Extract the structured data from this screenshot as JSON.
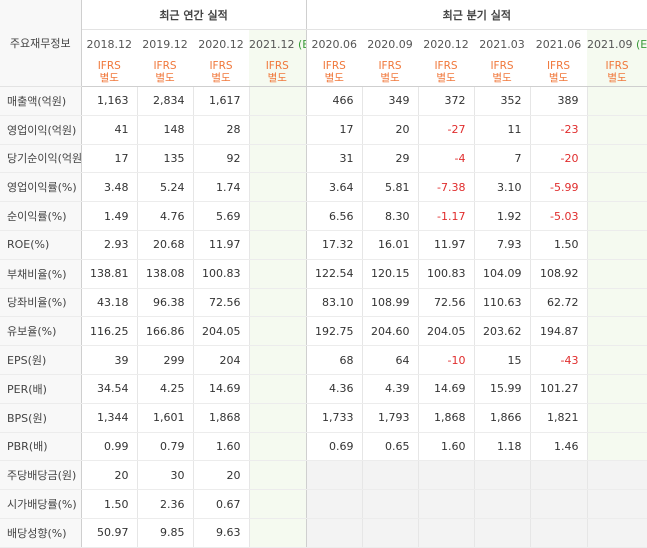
{
  "header": {
    "label": "주요재무정보",
    "annual_title": "최근 연간 실적",
    "quarter_title": "최근 분기 실적"
  },
  "periods": {
    "annual": [
      "2018.12",
      "2019.12",
      "2020.12",
      "2021.12"
    ],
    "annual_estimate_mark": "(E)",
    "quarter": [
      "2020.06",
      "2020.09",
      "2020.12",
      "2021.03",
      "2021.06",
      "2021.09"
    ],
    "quarter_estimate_mark": "(E)"
  },
  "ifrs": {
    "line1": "IFRS",
    "line2": "별도"
  },
  "rows": [
    {
      "label": "매출액(억원)",
      "annual": [
        "1,163",
        "2,834",
        "1,617",
        ""
      ],
      "quarter": [
        "466",
        "349",
        "372",
        "352",
        "389",
        ""
      ]
    },
    {
      "label": "영업이익(억원)",
      "annual": [
        "41",
        "148",
        "28",
        ""
      ],
      "quarter": [
        "17",
        "20",
        "-27",
        "11",
        "-23",
        ""
      ]
    },
    {
      "label": "당기순이익(억원)",
      "annual": [
        "17",
        "135",
        "92",
        ""
      ],
      "quarter": [
        "31",
        "29",
        "-4",
        "7",
        "-20",
        ""
      ]
    },
    {
      "label": "영업이익률(%)",
      "annual": [
        "3.48",
        "5.24",
        "1.74",
        ""
      ],
      "quarter": [
        "3.64",
        "5.81",
        "-7.38",
        "3.10",
        "-5.99",
        ""
      ]
    },
    {
      "label": "순이익률(%)",
      "annual": [
        "1.49",
        "4.76",
        "5.69",
        ""
      ],
      "quarter": [
        "6.56",
        "8.30",
        "-1.17",
        "1.92",
        "-5.03",
        ""
      ]
    },
    {
      "label": "ROE(%)",
      "annual": [
        "2.93",
        "20.68",
        "11.97",
        ""
      ],
      "quarter": [
        "17.32",
        "16.01",
        "11.97",
        "7.93",
        "1.50",
        ""
      ]
    },
    {
      "label": "부채비율(%)",
      "annual": [
        "138.81",
        "138.08",
        "100.83",
        ""
      ],
      "quarter": [
        "122.54",
        "120.15",
        "100.83",
        "104.09",
        "108.92",
        ""
      ]
    },
    {
      "label": "당좌비율(%)",
      "annual": [
        "43.18",
        "96.38",
        "72.56",
        ""
      ],
      "quarter": [
        "83.10",
        "108.99",
        "72.56",
        "110.63",
        "62.72",
        ""
      ]
    },
    {
      "label": "유보율(%)",
      "annual": [
        "116.25",
        "166.86",
        "204.05",
        ""
      ],
      "quarter": [
        "192.75",
        "204.60",
        "204.05",
        "203.62",
        "194.87",
        ""
      ]
    },
    {
      "label": "EPS(원)",
      "annual": [
        "39",
        "299",
        "204",
        ""
      ],
      "quarter": [
        "68",
        "64",
        "-10",
        "15",
        "-43",
        ""
      ]
    },
    {
      "label": "PER(배)",
      "annual": [
        "34.54",
        "4.25",
        "14.69",
        ""
      ],
      "quarter": [
        "4.36",
        "4.39",
        "14.69",
        "15.99",
        "101.27",
        ""
      ]
    },
    {
      "label": "BPS(원)",
      "annual": [
        "1,344",
        "1,601",
        "1,868",
        ""
      ],
      "quarter": [
        "1,733",
        "1,793",
        "1,868",
        "1,866",
        "1,821",
        ""
      ]
    },
    {
      "label": "PBR(배)",
      "annual": [
        "0.99",
        "0.79",
        "1.60",
        ""
      ],
      "quarter": [
        "0.69",
        "0.65",
        "1.60",
        "1.18",
        "1.46",
        ""
      ]
    },
    {
      "label": "주당배당금(원)",
      "annual": [
        "20",
        "30",
        "20",
        ""
      ],
      "quarter": [
        "",
        "",
        "",
        "",
        "",
        ""
      ]
    },
    {
      "label": "시가배당률(%)",
      "annual": [
        "1.50",
        "2.36",
        "0.67",
        ""
      ],
      "quarter": [
        "",
        "",
        "",
        "",
        "",
        ""
      ]
    },
    {
      "label": "배당성향(%)",
      "annual": [
        "50.97",
        "9.85",
        "9.63",
        ""
      ],
      "quarter": [
        "",
        "",
        "",
        "",
        "",
        ""
      ]
    }
  ],
  "colors": {
    "ifrs": "#f0773a",
    "negative": "#e02d2d",
    "estimate": "#3a9a3a",
    "estimate_bg": "#f5faf0"
  }
}
